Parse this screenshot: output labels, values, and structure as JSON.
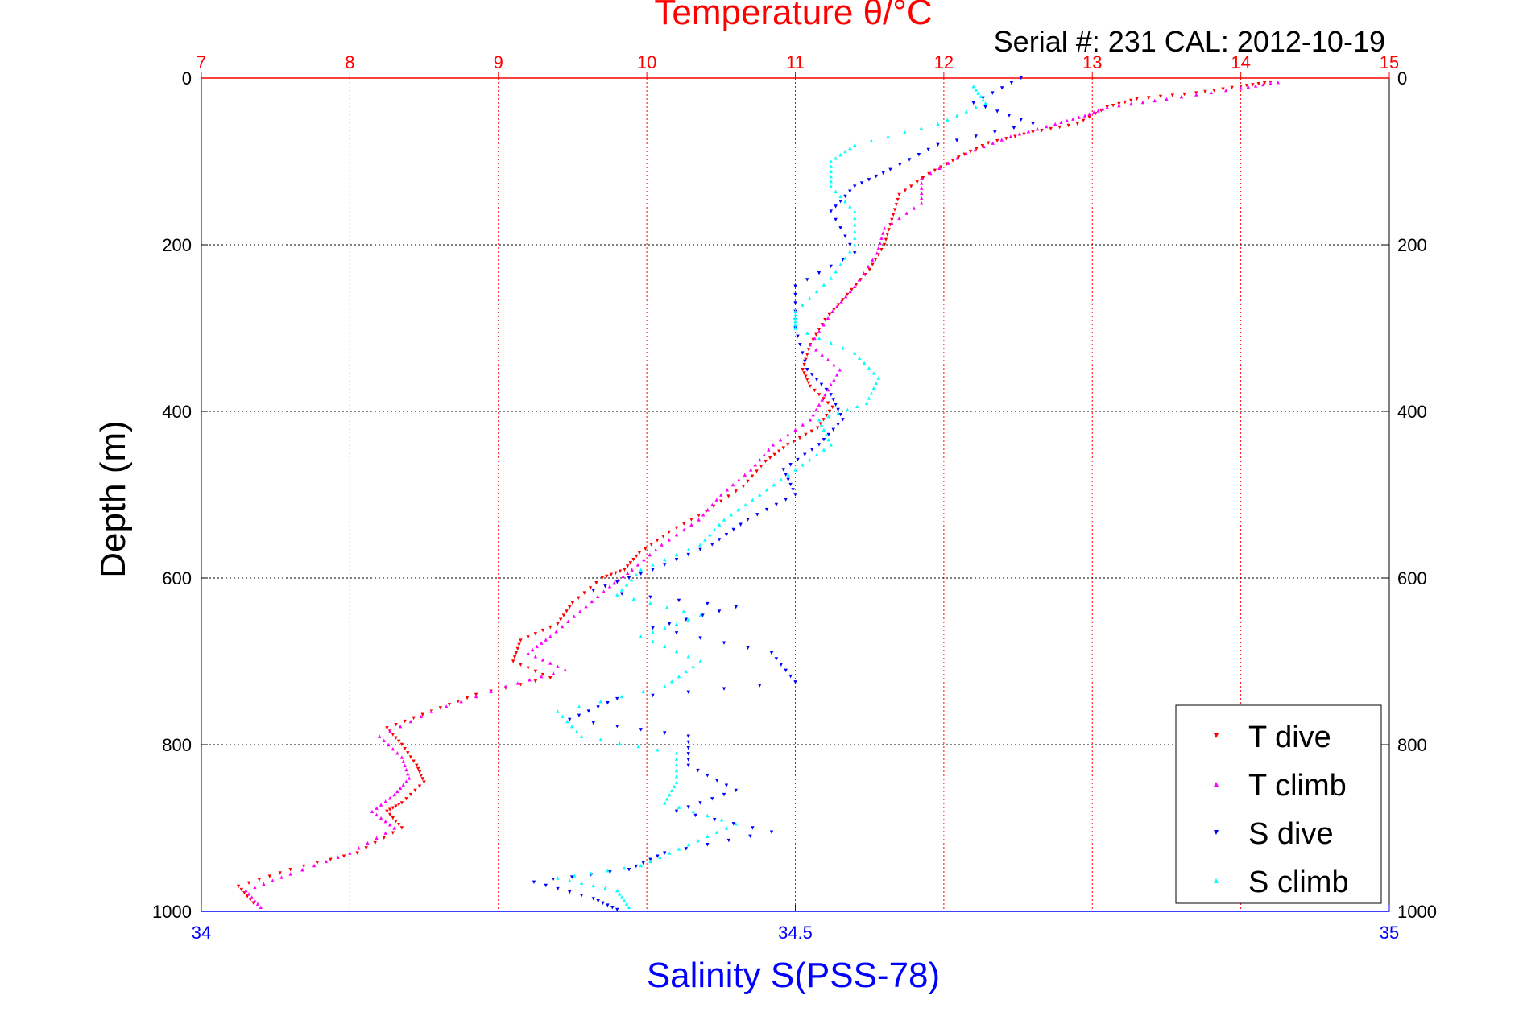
{
  "chart_data": {
    "type": "scatter",
    "title": "Temperature θ/°C",
    "subtitle": "Serial #: 231  CAL: 2012-10-19",
    "ylabel": "Depth (m)",
    "xlabel": "Salinity S(PSS-78)",
    "x_top": {
      "label": "Temperature θ/°C",
      "range": [
        7,
        15
      ],
      "ticks": [
        "7",
        "8",
        "9",
        "10",
        "11",
        "12",
        "13",
        "14",
        "15"
      ],
      "color": "#ff0000",
      "grid": true
    },
    "x_bottom": {
      "label": "Salinity S(PSS-78)",
      "range": [
        34,
        35
      ],
      "ticks": [
        "34",
        "34.5",
        "35"
      ],
      "color": "#0000ff"
    },
    "y": {
      "range": [
        0,
        1000
      ],
      "reversed": true,
      "ticks": [
        "0",
        "200",
        "400",
        "600",
        "800",
        "1000"
      ],
      "grid": true
    },
    "legend": {
      "position": "bottom-right",
      "entries": [
        "T dive",
        "T climb",
        "S dive",
        "S climb"
      ]
    },
    "series": [
      {
        "name": "T dive",
        "axis": "temperature",
        "color": "#ff0000",
        "marker": "triangle-down",
        "points": [
          [
            14.2,
            5
          ],
          [
            14.0,
            10
          ],
          [
            13.7,
            18
          ],
          [
            13.3,
            25
          ],
          [
            13.1,
            35
          ],
          [
            12.9,
            55
          ],
          [
            12.6,
            65
          ],
          [
            12.3,
            78
          ],
          [
            12.1,
            95
          ],
          [
            11.9,
            115
          ],
          [
            11.7,
            140
          ],
          [
            11.65,
            170
          ],
          [
            11.6,
            200
          ],
          [
            11.5,
            230
          ],
          [
            11.35,
            260
          ],
          [
            11.2,
            290
          ],
          [
            11.1,
            320
          ],
          [
            11.05,
            350
          ],
          [
            11.1,
            370
          ],
          [
            11.25,
            395
          ],
          [
            11.15,
            420
          ],
          [
            10.95,
            440
          ],
          [
            10.8,
            460
          ],
          [
            10.65,
            490
          ],
          [
            10.4,
            520
          ],
          [
            10.15,
            545
          ],
          [
            9.95,
            570
          ],
          [
            9.85,
            590
          ],
          [
            9.7,
            600
          ],
          [
            9.5,
            630
          ],
          [
            9.4,
            655
          ],
          [
            9.15,
            675
          ],
          [
            9.1,
            700
          ],
          [
            9.35,
            720
          ],
          [
            8.85,
            740
          ],
          [
            8.55,
            760
          ],
          [
            8.25,
            780
          ],
          [
            8.35,
            800
          ],
          [
            8.45,
            825
          ],
          [
            8.5,
            845
          ],
          [
            8.35,
            870
          ],
          [
            8.25,
            880
          ],
          [
            8.35,
            900
          ],
          [
            8.05,
            930
          ],
          [
            7.6,
            950
          ],
          [
            7.25,
            970
          ],
          [
            7.35,
            990
          ]
        ]
      },
      {
        "name": "T climb",
        "axis": "temperature",
        "color": "#ff00ff",
        "marker": "triangle-up",
        "points": [
          [
            14.25,
            5
          ],
          [
            14.0,
            12
          ],
          [
            13.5,
            25
          ],
          [
            13.1,
            35
          ],
          [
            12.95,
            45
          ],
          [
            12.75,
            55
          ],
          [
            12.45,
            70
          ],
          [
            12.15,
            90
          ],
          [
            11.85,
            120
          ],
          [
            11.85,
            150
          ],
          [
            11.6,
            180
          ],
          [
            11.55,
            210
          ],
          [
            11.4,
            250
          ],
          [
            11.25,
            280
          ],
          [
            11.1,
            320
          ],
          [
            11.3,
            350
          ],
          [
            11.2,
            380
          ],
          [
            11.1,
            410
          ],
          [
            10.85,
            440
          ],
          [
            10.7,
            470
          ],
          [
            10.5,
            500
          ],
          [
            10.35,
            530
          ],
          [
            10.1,
            560
          ],
          [
            9.9,
            590
          ],
          [
            9.75,
            610
          ],
          [
            9.55,
            640
          ],
          [
            9.35,
            670
          ],
          [
            9.2,
            690
          ],
          [
            9.45,
            710
          ],
          [
            9.05,
            730
          ],
          [
            8.55,
            760
          ],
          [
            8.2,
            790
          ],
          [
            8.35,
            815
          ],
          [
            8.4,
            840
          ],
          [
            8.3,
            860
          ],
          [
            8.15,
            880
          ],
          [
            8.3,
            900
          ],
          [
            8.0,
            930
          ],
          [
            7.6,
            955
          ],
          [
            7.3,
            975
          ],
          [
            7.4,
            995
          ]
        ]
      },
      {
        "name": "S dive",
        "axis": "salinity",
        "color": "#0000ff",
        "marker": "triangle-down",
        "points": [
          [
            34.69,
            0
          ],
          [
            34.65,
            30
          ],
          [
            34.7,
            55
          ],
          [
            34.62,
            80
          ],
          [
            34.58,
            110
          ],
          [
            34.55,
            130
          ],
          [
            34.53,
            160
          ],
          [
            34.55,
            210
          ],
          [
            34.5,
            250
          ],
          [
            34.5,
            300
          ],
          [
            34.51,
            350
          ],
          [
            34.53,
            380
          ],
          [
            34.54,
            410
          ],
          [
            34.52,
            440
          ],
          [
            34.49,
            470
          ],
          [
            34.5,
            500
          ],
          [
            34.46,
            530
          ],
          [
            34.43,
            560
          ],
          [
            34.38,
            590
          ],
          [
            34.33,
            615
          ],
          [
            34.45,
            635
          ],
          [
            34.38,
            660
          ],
          [
            34.48,
            690
          ],
          [
            34.5,
            725
          ],
          [
            34.35,
            745
          ],
          [
            34.31,
            770
          ],
          [
            34.41,
            790
          ],
          [
            34.41,
            825
          ],
          [
            34.45,
            855
          ],
          [
            34.4,
            880
          ],
          [
            34.48,
            905
          ],
          [
            34.39,
            930
          ],
          [
            34.36,
            950
          ],
          [
            34.28,
            965
          ],
          [
            34.33,
            985
          ],
          [
            34.35,
            998
          ]
        ]
      },
      {
        "name": "S climb",
        "axis": "salinity",
        "color": "#00ffff",
        "marker": "triangle-up",
        "points": [
          [
            34.65,
            10
          ],
          [
            34.66,
            30
          ],
          [
            34.62,
            55
          ],
          [
            34.55,
            80
          ],
          [
            34.53,
            100
          ],
          [
            34.53,
            130
          ],
          [
            34.55,
            160
          ],
          [
            34.55,
            200
          ],
          [
            34.53,
            240
          ],
          [
            34.5,
            280
          ],
          [
            34.5,
            300
          ],
          [
            34.55,
            330
          ],
          [
            34.57,
            360
          ],
          [
            34.56,
            390
          ],
          [
            34.52,
            410
          ],
          [
            34.53,
            440
          ],
          [
            34.5,
            470
          ],
          [
            34.47,
            500
          ],
          [
            34.44,
            530
          ],
          [
            34.42,
            560
          ],
          [
            34.37,
            590
          ],
          [
            34.35,
            620
          ],
          [
            34.42,
            645
          ],
          [
            34.37,
            670
          ],
          [
            34.42,
            700
          ],
          [
            34.39,
            730
          ],
          [
            34.3,
            760
          ],
          [
            34.32,
            790
          ],
          [
            34.4,
            810
          ],
          [
            34.4,
            845
          ],
          [
            34.39,
            870
          ],
          [
            34.45,
            895
          ],
          [
            34.41,
            920
          ],
          [
            34.37,
            945
          ],
          [
            34.3,
            960
          ],
          [
            34.35,
            975
          ],
          [
            34.36,
            995
          ]
        ]
      }
    ]
  }
}
